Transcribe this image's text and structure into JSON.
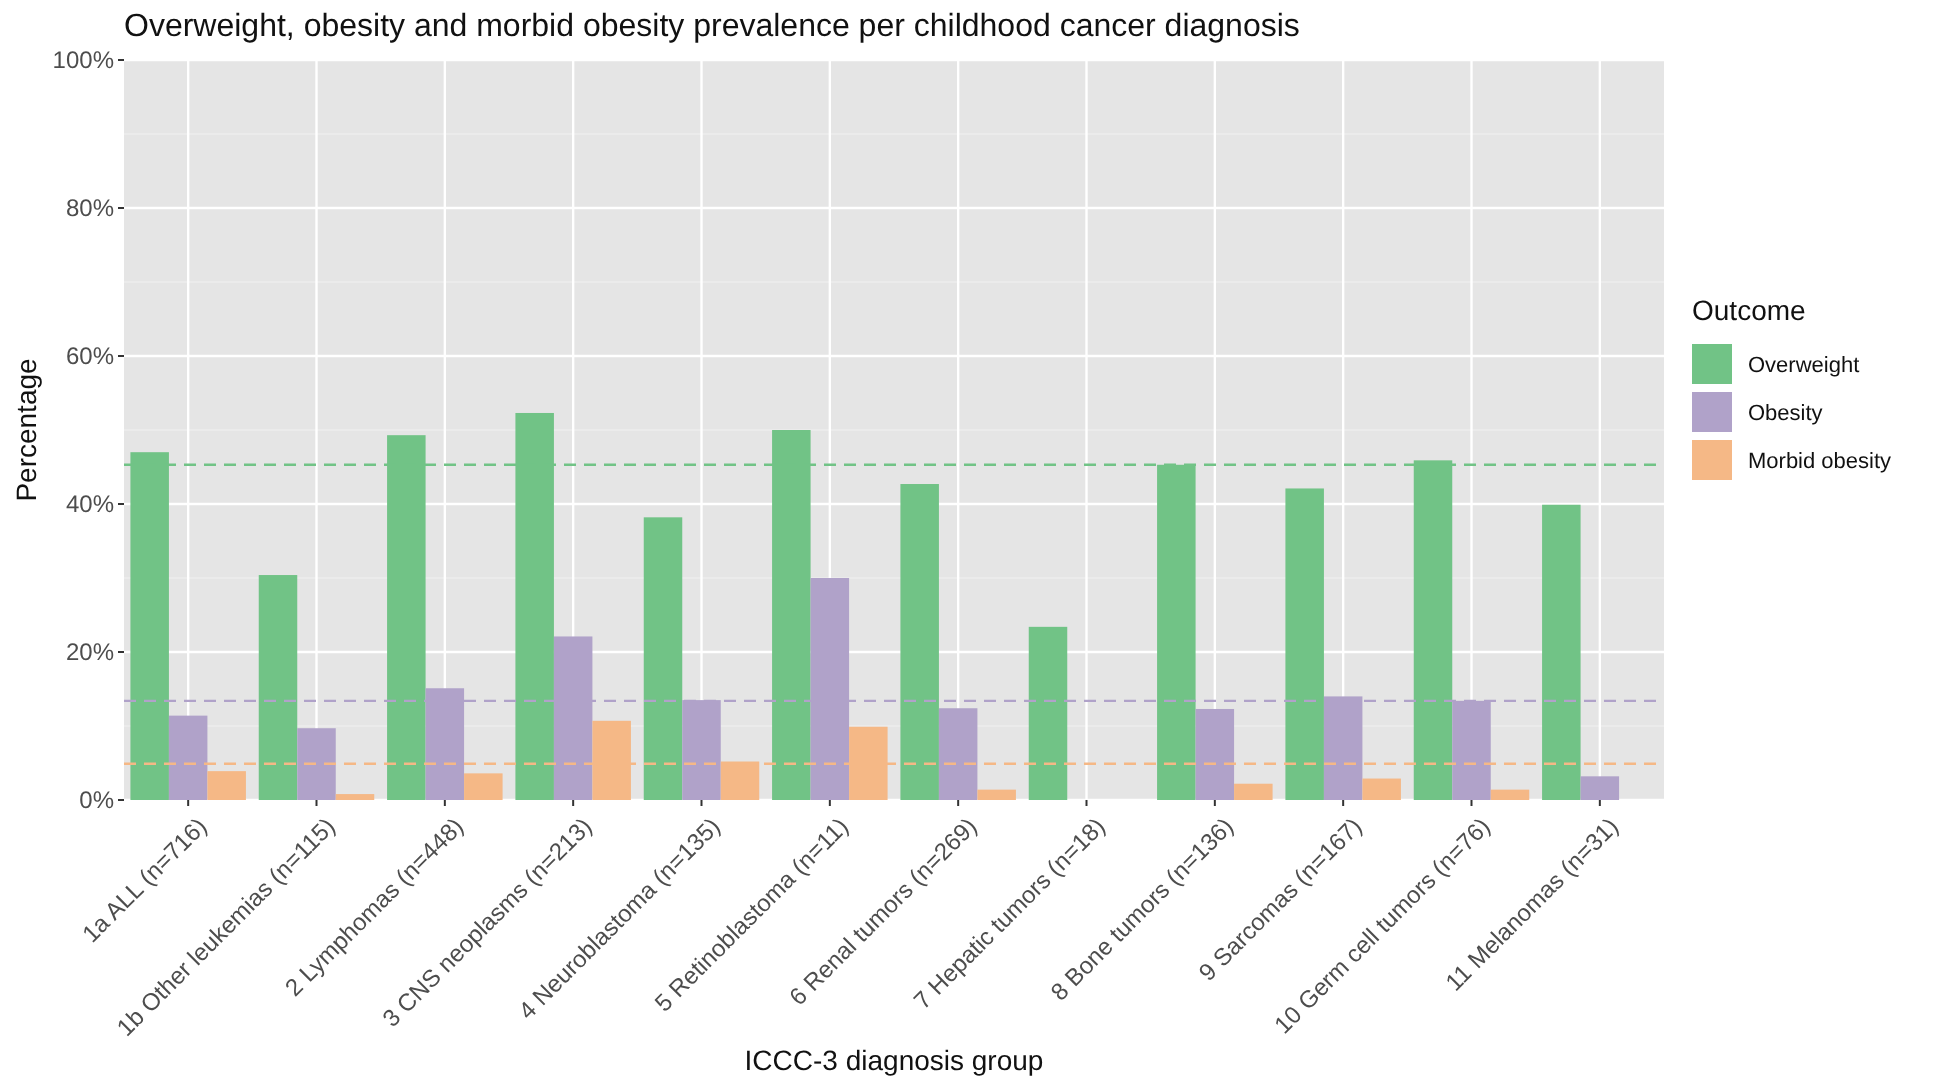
{
  "chart_data": {
    "type": "bar",
    "title": "Overweight, obesity and morbid obesity prevalence per childhood cancer diagnosis",
    "xlabel": "ICCC-3 diagnosis group",
    "ylabel": "Percentage",
    "legend_title": "Outcome",
    "legend": "right",
    "grid": true,
    "categories": [
      "1a ALL (n=716)",
      "1b Other leukemias (n=115)",
      "2 Lymphomas (n=448)",
      "3 CNS neoplasms (n=213)",
      "4 Neuroblastoma (n=135)",
      "5 Retinoblastoma (n=11)",
      "6 Renal tumors (n=269)",
      "7 Hepatic tumors (n=18)",
      "8 Bone tumors (n=136)",
      "9 Sarcomas (n=167)",
      "10 Germ cell tumors (n=76)",
      "11 Melanomas (n=31)"
    ],
    "series": [
      {
        "name": "Overweight",
        "color": "#71c386",
        "values": [
          47.0,
          30.4,
          49.3,
          52.3,
          38.2,
          50.0,
          42.7,
          23.4,
          45.3,
          42.1,
          45.9,
          39.9
        ]
      },
      {
        "name": "Obesity",
        "color": "#b0a2c9",
        "values": [
          11.4,
          9.7,
          15.1,
          22.1,
          13.5,
          30.0,
          12.4,
          null,
          12.3,
          14.0,
          13.4,
          3.2
        ]
      },
      {
        "name": "Morbid obesity",
        "color": "#f5b886",
        "values": [
          3.9,
          0.8,
          3.6,
          10.7,
          5.2,
          9.9,
          1.4,
          null,
          2.2,
          2.9,
          1.4,
          null
        ]
      }
    ],
    "ylim": [
      0,
      100
    ],
    "yticks": [
      {
        "value": 0,
        "label": "0%"
      },
      {
        "value": 20,
        "label": "20%"
      },
      {
        "value": 40,
        "label": "40%"
      },
      {
        "value": 60,
        "label": "60%"
      },
      {
        "value": 80,
        "label": "80%"
      },
      {
        "value": 100,
        "label": "100%"
      }
    ],
    "ref_lines": [
      {
        "axis": "y",
        "value": 45.3,
        "color": "#71c386",
        "line_style": "dashed"
      },
      {
        "axis": "y",
        "value": 13.4,
        "color": "#b0a2c9",
        "line_style": "dashed"
      },
      {
        "axis": "y",
        "value": 4.9,
        "color": "#f5b886",
        "line_style": "dashed"
      }
    ]
  }
}
